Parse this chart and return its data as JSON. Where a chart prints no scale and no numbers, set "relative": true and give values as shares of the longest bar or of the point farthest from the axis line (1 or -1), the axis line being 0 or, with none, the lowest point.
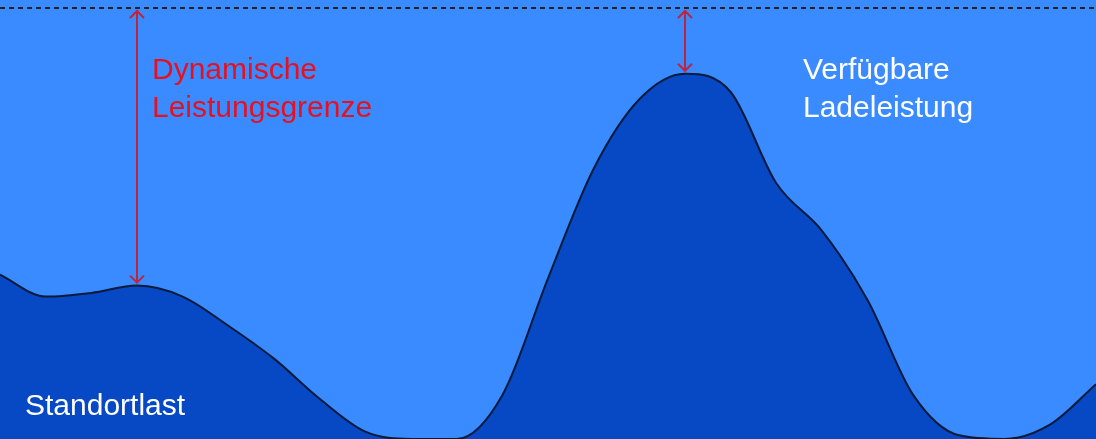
{
  "chart_data": {
    "type": "area",
    "relative": true,
    "categories": [
      null,
      null,
      null,
      null,
      null,
      null,
      null,
      null,
      null,
      null,
      null,
      null,
      null,
      null,
      null,
      null,
      null,
      null,
      null,
      null,
      null,
      null,
      null,
      null,
      null
    ],
    "series": [
      {
        "name": "Standortlast",
        "color": "#0748c4",
        "values": [
          0.45,
          0.39,
          0.4,
          0.42,
          0.39,
          0.31,
          0.22,
          0.11,
          0.02,
          0,
          0,
          0.12,
          0.44,
          0.74,
          0.93,
          1.0,
          0.95,
          0.7,
          0.57,
          0.38,
          0.12,
          0.01,
          0,
          0.04,
          0.15
        ]
      }
    ],
    "ref_lines": [
      {
        "axis": "y",
        "value": 1.18,
        "label": null,
        "color": "#222222",
        "line_style": "dashed"
      }
    ],
    "annotations": [
      "Dynamische Leistungsgrenze",
      "Verfügbare Ladeleistung"
    ],
    "legend": false,
    "marker": "none"
  }
}
